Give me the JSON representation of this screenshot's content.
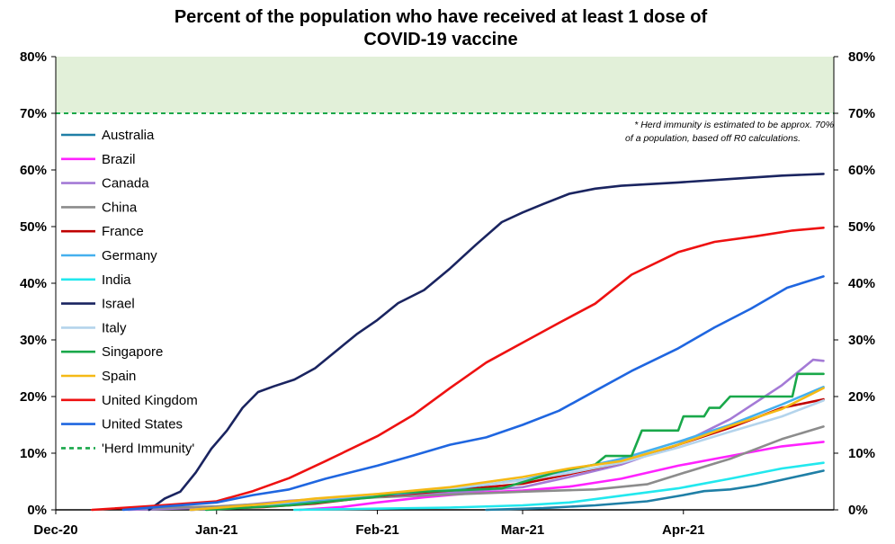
{
  "chart_data": {
    "type": "line",
    "title_lines": [
      "Percent of the population who have received at least 1 dose of",
      "COVID-19 vaccine"
    ],
    "x_type": "date",
    "xlim": [
      "2020-12-01",
      "2021-04-30"
    ],
    "x_ticks": [
      {
        "label": "Dec-20",
        "date": "2020-12-01"
      },
      {
        "label": "Jan-21",
        "date": "2021-01-01"
      },
      {
        "label": "Feb-21",
        "date": "2021-02-01"
      },
      {
        "label": "Mar-21",
        "date": "2021-03-01"
      },
      {
        "label": "Apr-21",
        "date": "2021-04-01"
      }
    ],
    "ylim": [
      0,
      80
    ],
    "y_ticks": [
      0,
      10,
      20,
      30,
      40,
      50,
      60,
      70,
      80
    ],
    "y_tick_labels": [
      "0%",
      "10%",
      "20%",
      "30%",
      "40%",
      "50%",
      "60%",
      "70%",
      "80%"
    ],
    "herd_zone": {
      "from": 70,
      "to": 80,
      "color": "#e2f0d9"
    },
    "note_lines": [
      "* Herd immunity is estimated to be approx. 70%",
      "of a population, based off R0 calculations."
    ],
    "legend_position": "left",
    "series": [
      {
        "name": "Australia",
        "color": "#1f7fa6",
        "points": [
          [
            "2021-02-22",
            0
          ],
          [
            "2021-03-05",
            0.3
          ],
          [
            "2021-03-15",
            0.8
          ],
          [
            "2021-03-25",
            1.5
          ],
          [
            "2021-04-01",
            2.6
          ],
          [
            "2021-04-05",
            3.3
          ],
          [
            "2021-04-10",
            3.6
          ],
          [
            "2021-04-15",
            4.3
          ],
          [
            "2021-04-20",
            5.3
          ],
          [
            "2021-04-25",
            6.3
          ],
          [
            "2021-04-28",
            6.9
          ]
        ]
      },
      {
        "name": "Brazil",
        "color": "#ff22ff",
        "points": [
          [
            "2021-01-17",
            0
          ],
          [
            "2021-01-25",
            0.5
          ],
          [
            "2021-02-01",
            1.3
          ],
          [
            "2021-02-10",
            2.2
          ],
          [
            "2021-02-20",
            3.0
          ],
          [
            "2021-03-01",
            3.4
          ],
          [
            "2021-03-10",
            4.1
          ],
          [
            "2021-03-20",
            5.5
          ],
          [
            "2021-03-31",
            7.8
          ],
          [
            "2021-04-10",
            9.5
          ],
          [
            "2021-04-20",
            11.2
          ],
          [
            "2021-04-28",
            12.0
          ]
        ]
      },
      {
        "name": "Canada",
        "color": "#a47ad6",
        "points": [
          [
            "2020-12-15",
            0
          ],
          [
            "2021-01-01",
            0.4
          ],
          [
            "2021-01-15",
            1.6
          ],
          [
            "2021-02-01",
            2.5
          ],
          [
            "2021-02-15",
            3.0
          ],
          [
            "2021-03-01",
            4.0
          ],
          [
            "2021-03-10",
            5.8
          ],
          [
            "2021-03-20",
            8.0
          ],
          [
            "2021-03-31",
            11.5
          ],
          [
            "2021-04-10",
            16.0
          ],
          [
            "2021-04-20",
            22.0
          ],
          [
            "2021-04-26",
            26.5
          ],
          [
            "2021-04-28",
            26.3
          ]
        ]
      },
      {
        "name": "China",
        "color": "#8c8c8c",
        "points": [
          [
            "2020-12-15",
            0.2
          ],
          [
            "2021-01-01",
            0.6
          ],
          [
            "2021-01-15",
            1.3
          ],
          [
            "2021-02-01",
            2.2
          ],
          [
            "2021-02-15",
            2.7
          ],
          [
            "2021-03-01",
            3.2
          ],
          [
            "2021-03-15",
            3.6
          ],
          [
            "2021-03-25",
            4.5
          ],
          [
            "2021-04-01",
            6.5
          ],
          [
            "2021-04-10",
            9.0
          ],
          [
            "2021-04-20",
            12.5
          ],
          [
            "2021-04-28",
            14.7
          ]
        ]
      },
      {
        "name": "France",
        "color": "#c00000",
        "points": [
          [
            "2020-12-27",
            0
          ],
          [
            "2021-01-10",
            0.5
          ],
          [
            "2021-01-20",
            1.1
          ],
          [
            "2021-02-01",
            2.4
          ],
          [
            "2021-02-15",
            3.4
          ],
          [
            "2021-03-01",
            4.6
          ],
          [
            "2021-03-10",
            6.3
          ],
          [
            "2021-03-20",
            8.3
          ],
          [
            "2021-03-31",
            11.5
          ],
          [
            "2021-04-10",
            14.5
          ],
          [
            "2021-04-20",
            18.0
          ],
          [
            "2021-04-28",
            19.5
          ]
        ]
      },
      {
        "name": "Germany",
        "color": "#45b0ee",
        "points": [
          [
            "2020-12-27",
            0
          ],
          [
            "2021-01-10",
            0.6
          ],
          [
            "2021-01-20",
            1.4
          ],
          [
            "2021-02-01",
            2.5
          ],
          [
            "2021-02-15",
            3.6
          ],
          [
            "2021-03-01",
            5.3
          ],
          [
            "2021-03-10",
            7.0
          ],
          [
            "2021-03-20",
            9.0
          ],
          [
            "2021-03-31",
            12.0
          ],
          [
            "2021-04-10",
            15.0
          ],
          [
            "2021-04-20",
            18.6
          ],
          [
            "2021-04-28",
            21.7
          ]
        ]
      },
      {
        "name": "India",
        "color": "#22e8ee",
        "points": [
          [
            "2021-01-16",
            0
          ],
          [
            "2021-02-01",
            0.2
          ],
          [
            "2021-02-15",
            0.4
          ],
          [
            "2021-03-01",
            0.8
          ],
          [
            "2021-03-10",
            1.3
          ],
          [
            "2021-03-20",
            2.5
          ],
          [
            "2021-03-31",
            3.8
          ],
          [
            "2021-04-10",
            5.5
          ],
          [
            "2021-04-20",
            7.3
          ],
          [
            "2021-04-28",
            8.3
          ]
        ]
      },
      {
        "name": "Israel",
        "color": "#1a2460",
        "points": [
          [
            "2020-12-19",
            0
          ],
          [
            "2020-12-22",
            2.0
          ],
          [
            "2020-12-25",
            3.2
          ],
          [
            "2020-12-28",
            6.6
          ],
          [
            "2020-12-31",
            10.8
          ],
          [
            "2021-01-03",
            14.0
          ],
          [
            "2021-01-06",
            18.0
          ],
          [
            "2021-01-09",
            20.8
          ],
          [
            "2021-01-12",
            21.8
          ],
          [
            "2021-01-16",
            23.0
          ],
          [
            "2021-01-20",
            25.0
          ],
          [
            "2021-01-24",
            28.0
          ],
          [
            "2021-01-28",
            31.0
          ],
          [
            "2021-02-01",
            33.5
          ],
          [
            "2021-02-05",
            36.5
          ],
          [
            "2021-02-10",
            38.8
          ],
          [
            "2021-02-15",
            42.6
          ],
          [
            "2021-02-20",
            46.8
          ],
          [
            "2021-02-25",
            50.8
          ],
          [
            "2021-03-01",
            52.5
          ],
          [
            "2021-03-05",
            54.0
          ],
          [
            "2021-03-10",
            55.8
          ],
          [
            "2021-03-15",
            56.7
          ],
          [
            "2021-03-20",
            57.2
          ],
          [
            "2021-03-31",
            57.8
          ],
          [
            "2021-04-10",
            58.4
          ],
          [
            "2021-04-20",
            59.0
          ],
          [
            "2021-04-28",
            59.3
          ]
        ]
      },
      {
        "name": "Italy",
        "color": "#b4d4ec",
        "points": [
          [
            "2020-12-27",
            0
          ],
          [
            "2021-01-10",
            0.9
          ],
          [
            "2021-01-20",
            1.9
          ],
          [
            "2021-02-01",
            2.8
          ],
          [
            "2021-02-15",
            3.8
          ],
          [
            "2021-03-01",
            5.2
          ],
          [
            "2021-03-10",
            6.5
          ],
          [
            "2021-03-20",
            8.3
          ],
          [
            "2021-03-31",
            11.0
          ],
          [
            "2021-04-10",
            13.8
          ],
          [
            "2021-04-20",
            16.5
          ],
          [
            "2021-04-28",
            19.3
          ]
        ]
      },
      {
        "name": "Singapore",
        "color": "#19a84a",
        "points": [
          [
            "2020-12-30",
            0
          ],
          [
            "2021-01-15",
            0.8
          ],
          [
            "2021-01-31",
            2.2
          ],
          [
            "2021-02-05",
            3.0
          ],
          [
            "2021-02-25",
            3.8
          ],
          [
            "2021-03-08",
            6.8
          ],
          [
            "2021-03-15",
            8.0
          ],
          [
            "2021-03-17",
            9.5
          ],
          [
            "2021-03-22",
            9.5
          ],
          [
            "2021-03-24",
            14.0
          ],
          [
            "2021-03-31",
            14.0
          ],
          [
            "2021-04-01",
            16.5
          ],
          [
            "2021-04-05",
            16.5
          ],
          [
            "2021-04-06",
            18.0
          ],
          [
            "2021-04-08",
            18.0
          ],
          [
            "2021-04-10",
            20.0
          ],
          [
            "2021-04-22",
            20.0
          ],
          [
            "2021-04-23",
            24.0
          ],
          [
            "2021-04-28",
            24.0
          ]
        ]
      },
      {
        "name": "Spain",
        "color": "#f5b915",
        "points": [
          [
            "2020-12-27",
            0
          ],
          [
            "2021-01-10",
            1.0
          ],
          [
            "2021-01-20",
            2.0
          ],
          [
            "2021-02-01",
            2.8
          ],
          [
            "2021-02-15",
            4.0
          ],
          [
            "2021-03-01",
            5.8
          ],
          [
            "2021-03-10",
            7.3
          ],
          [
            "2021-03-20",
            8.6
          ],
          [
            "2021-03-31",
            11.5
          ],
          [
            "2021-04-10",
            14.8
          ],
          [
            "2021-04-20",
            17.8
          ],
          [
            "2021-04-28",
            21.5
          ]
        ]
      },
      {
        "name": "United Kingdom",
        "color": "#ee1111",
        "points": [
          [
            "2020-12-08",
            0
          ],
          [
            "2020-12-20",
            0.7
          ],
          [
            "2021-01-01",
            1.5
          ],
          [
            "2021-01-08",
            3.3
          ],
          [
            "2021-01-15",
            5.6
          ],
          [
            "2021-01-22",
            8.6
          ],
          [
            "2021-02-01",
            13.0
          ],
          [
            "2021-02-08",
            16.8
          ],
          [
            "2021-02-15",
            21.5
          ],
          [
            "2021-02-22",
            26.0
          ],
          [
            "2021-03-01",
            29.5
          ],
          [
            "2021-03-08",
            33.0
          ],
          [
            "2021-03-15",
            36.4
          ],
          [
            "2021-03-22",
            41.5
          ],
          [
            "2021-03-31",
            45.5
          ],
          [
            "2021-04-07",
            47.3
          ],
          [
            "2021-04-15",
            48.3
          ],
          [
            "2021-04-22",
            49.3
          ],
          [
            "2021-04-28",
            49.8
          ]
        ]
      },
      {
        "name": "United States",
        "color": "#1f66e0",
        "points": [
          [
            "2020-12-14",
            0
          ],
          [
            "2020-12-22",
            0.6
          ],
          [
            "2021-01-01",
            1.3
          ],
          [
            "2021-01-08",
            2.6
          ],
          [
            "2021-01-15",
            3.6
          ],
          [
            "2021-01-22",
            5.5
          ],
          [
            "2021-02-01",
            7.8
          ],
          [
            "2021-02-08",
            9.6
          ],
          [
            "2021-02-15",
            11.5
          ],
          [
            "2021-02-22",
            12.8
          ],
          [
            "2021-03-01",
            15.0
          ],
          [
            "2021-03-08",
            17.5
          ],
          [
            "2021-03-15",
            21.0
          ],
          [
            "2021-03-22",
            24.5
          ],
          [
            "2021-03-31",
            28.5
          ],
          [
            "2021-04-07",
            32.2
          ],
          [
            "2021-04-14",
            35.5
          ],
          [
            "2021-04-21",
            39.2
          ],
          [
            "2021-04-28",
            41.2
          ]
        ]
      }
    ],
    "reference_line": {
      "name": "'Herd Immunity'",
      "value": 70,
      "color": "#19a84a",
      "style": "dashed"
    }
  }
}
